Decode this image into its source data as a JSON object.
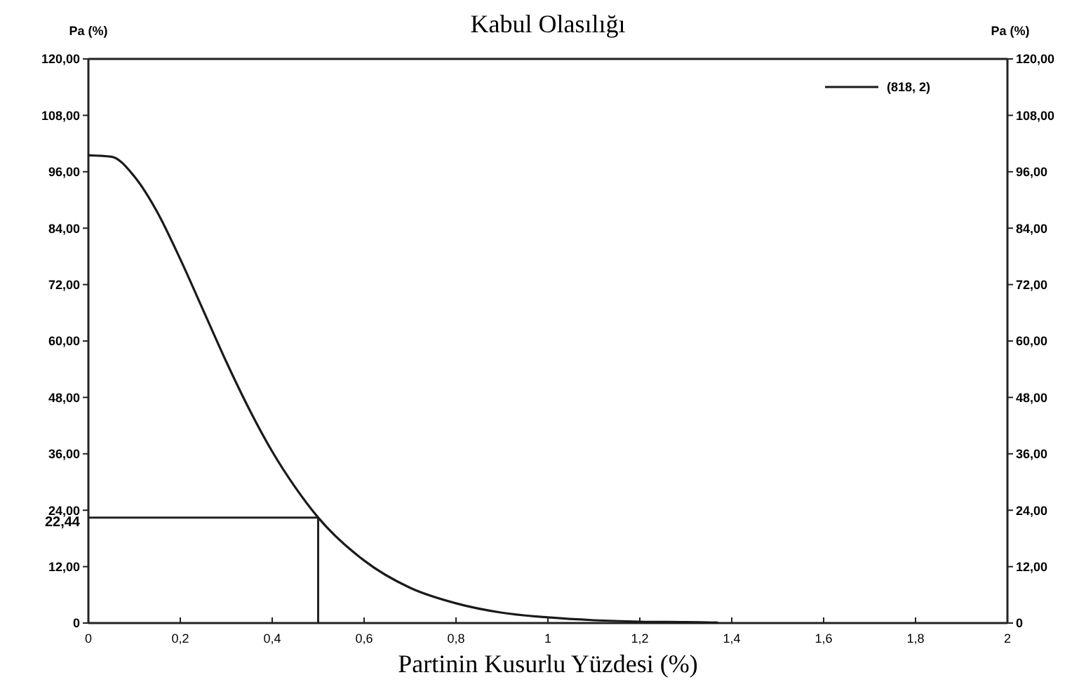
{
  "chart_data": {
    "type": "line",
    "title": "Kabul Olasılığı",
    "xlabel": "Partinin Kusurlu Yüzdesi (%)",
    "ylabel": "Pa (%)",
    "y2label": "Pa (%)",
    "x": [
      0,
      0.05,
      0.1,
      0.15,
      0.2,
      0.25,
      0.3,
      0.35,
      0.4,
      0.45,
      0.5,
      0.6,
      0.7,
      0.8,
      0.9,
      1,
      1.1,
      1.2,
      1.3,
      1.37
    ],
    "series": [
      {
        "name": "(818, 2)",
        "color": "#1a1a1a",
        "values": [
          99.5,
          99.2,
          95,
          87.4,
          77.4,
          66.5,
          55.6,
          45.5,
          36.5,
          28.9,
          22.44,
          13.3,
          7.5,
          4.2,
          2.2,
          1.2,
          0.6,
          0.3,
          0.2,
          0.1
        ]
      }
    ],
    "xlim": [
      0,
      2
    ],
    "xticks": [
      0,
      {
        "value": 0.2,
        "label": "0,2"
      },
      {
        "value": 0.4,
        "label": "0,4"
      },
      {
        "value": 0.6,
        "label": "0,6"
      },
      {
        "value": 0.8,
        "label": "0,8"
      },
      1,
      {
        "value": 1.2,
        "label": "1,2"
      },
      {
        "value": 1.4,
        "label": "1,4"
      },
      {
        "value": 1.6,
        "label": "1,6"
      },
      {
        "value": 1.8,
        "label": "1,8"
      },
      2
    ],
    "ylim": [
      0,
      120
    ],
    "yticks": [
      0,
      {
        "value": 12,
        "label": "12,00"
      },
      {
        "value": 24,
        "label": "24,00"
      },
      {
        "value": 36,
        "label": "36,00"
      },
      {
        "value": 48,
        "label": "48,00"
      },
      {
        "value": 60,
        "label": "60,00"
      },
      {
        "value": 72,
        "label": "72,00"
      },
      {
        "value": 84,
        "label": "84,00"
      },
      {
        "value": 96,
        "label": "96,00"
      },
      {
        "value": 108,
        "label": "108,00"
      },
      {
        "value": 120,
        "label": "120,00"
      }
    ],
    "y2lim": [
      0,
      120
    ],
    "y2ticks": [
      0,
      {
        "value": 12,
        "label": "12,00"
      },
      {
        "value": 24,
        "label": "24,00"
      },
      {
        "value": 36,
        "label": "36,00"
      },
      {
        "value": 48,
        "label": "48,00"
      },
      {
        "value": 60,
        "label": "60,00"
      },
      {
        "value": 72,
        "label": "72,00"
      },
      {
        "value": 84,
        "label": "84,00"
      },
      {
        "value": 96,
        "label": "96,00"
      },
      {
        "value": 108,
        "label": "108,00"
      },
      {
        "value": 120,
        "label": "120,00"
      }
    ],
    "ref_lines": [
      {
        "axis": "y",
        "value": 22.44,
        "label": "22,44"
      },
      {
        "axis": "x",
        "value": 0.5
      }
    ],
    "legend": "top right",
    "marker": "none",
    "line_style": "solid",
    "grid": false
  }
}
